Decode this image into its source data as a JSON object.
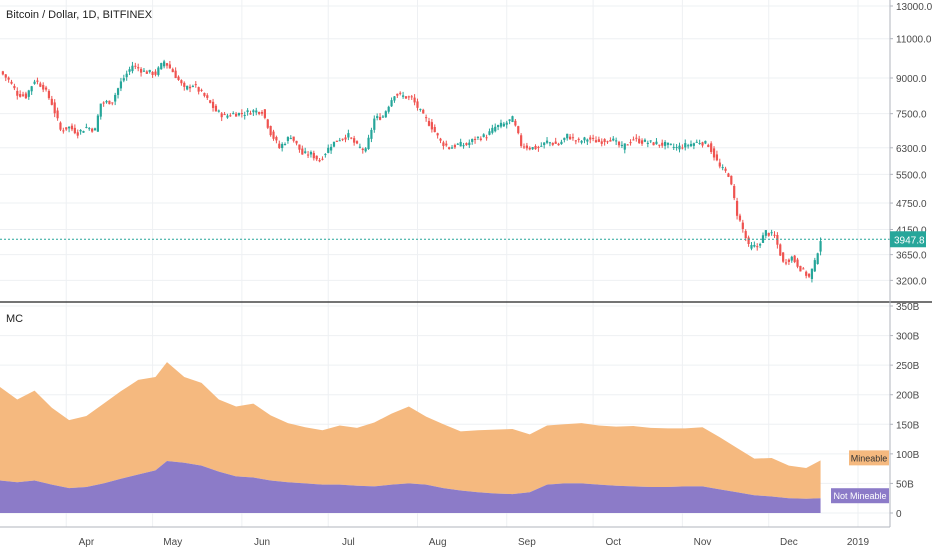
{
  "header": {
    "title": "Bitcoin / Dollar, 1D, BITFINEX",
    "indicator_label": "MC"
  },
  "colors": {
    "up": "#26a69a",
    "down": "#ef5350",
    "mineable": "#f5b97f",
    "not_mineable": "#8c7bc8",
    "last_price": "#26a69a",
    "grid": "#eef0f3",
    "axis_text": "#4a4a4a"
  },
  "chart_data": [
    {
      "type": "candlestick",
      "title": "Bitcoin / Dollar, 1D, BITFINEX",
      "yscale": "log",
      "ylim": [
        3000,
        13000
      ],
      "y_ticks": [
        13000,
        11000,
        9000,
        7500,
        6300,
        5500,
        4750,
        4150,
        3650,
        3200
      ],
      "y_tick_labels": [
        "13000.0",
        "11000.0",
        "9000.0",
        "7500.0",
        "6300.0",
        "5500.0",
        "4750.0",
        "4150.0",
        "3650.0",
        "3200.0"
      ],
      "x_ticks": [
        "Apr",
        "May",
        "Jun",
        "Jul",
        "Aug",
        "Sep",
        "Oct",
        "Nov",
        "Dec",
        "2019"
      ],
      "last_price": 3947.8,
      "last_price_label": "3947.8",
      "close_series": [
        [
          "2018-03-09",
          9300
        ],
        [
          "2018-03-12",
          8900
        ],
        [
          "2018-03-15",
          8300
        ],
        [
          "2018-03-18",
          8200
        ],
        [
          "2018-03-21",
          8900
        ],
        [
          "2018-03-24",
          8600
        ],
        [
          "2018-03-27",
          7900
        ],
        [
          "2018-03-30",
          6900
        ],
        [
          "2018-04-02",
          7000
        ],
        [
          "2018-04-05",
          6800
        ],
        [
          "2018-04-08",
          7000
        ],
        [
          "2018-04-11",
          6900
        ],
        [
          "2018-04-13",
          7900
        ],
        [
          "2018-04-17",
          8000
        ],
        [
          "2018-04-20",
          8800
        ],
        [
          "2018-04-24",
          9600
        ],
        [
          "2018-04-28",
          9300
        ],
        [
          "2018-05-02",
          9200
        ],
        [
          "2018-05-05",
          9800
        ],
        [
          "2018-05-08",
          9300
        ],
        [
          "2018-05-12",
          8500
        ],
        [
          "2018-05-15",
          8700
        ],
        [
          "2018-05-19",
          8200
        ],
        [
          "2018-05-23",
          7600
        ],
        [
          "2018-05-26",
          7400
        ],
        [
          "2018-05-29",
          7500
        ],
        [
          "2018-06-01",
          7500
        ],
        [
          "2018-06-05",
          7600
        ],
        [
          "2018-06-08",
          7600
        ],
        [
          "2018-06-11",
          6800
        ],
        [
          "2018-06-14",
          6300
        ],
        [
          "2018-06-18",
          6700
        ],
        [
          "2018-06-22",
          6100
        ],
        [
          "2018-06-25",
          6100
        ],
        [
          "2018-06-28",
          5900
        ],
        [
          "2018-07-02",
          6400
        ],
        [
          "2018-07-05",
          6600
        ],
        [
          "2018-07-08",
          6700
        ],
        [
          "2018-07-11",
          6350
        ],
        [
          "2018-07-14",
          6200
        ],
        [
          "2018-07-17",
          7300
        ],
        [
          "2018-07-20",
          7400
        ],
        [
          "2018-07-24",
          8300
        ],
        [
          "2018-07-27",
          8200
        ],
        [
          "2018-07-30",
          8100
        ],
        [
          "2018-08-03",
          7400
        ],
        [
          "2018-08-06",
          7000
        ],
        [
          "2018-08-09",
          6500
        ],
        [
          "2018-08-12",
          6300
        ],
        [
          "2018-08-15",
          6400
        ],
        [
          "2018-08-18",
          6400
        ],
        [
          "2018-08-21",
          6600
        ],
        [
          "2018-08-25",
          6700
        ],
        [
          "2018-08-28",
          7000
        ],
        [
          "2018-08-31",
          7100
        ],
        [
          "2018-09-03",
          7300
        ],
        [
          "2018-09-06",
          6400
        ],
        [
          "2018-09-09",
          6300
        ],
        [
          "2018-09-12",
          6300
        ],
        [
          "2018-09-15",
          6500
        ],
        [
          "2018-09-19",
          6400
        ],
        [
          "2018-09-22",
          6700
        ],
        [
          "2018-09-26",
          6500
        ],
        [
          "2018-09-29",
          6600
        ],
        [
          "2018-10-03",
          6500
        ],
        [
          "2018-10-07",
          6600
        ],
        [
          "2018-10-11",
          6300
        ],
        [
          "2018-10-15",
          6600
        ],
        [
          "2018-10-18",
          6500
        ],
        [
          "2018-10-22",
          6450
        ],
        [
          "2018-10-26",
          6400
        ],
        [
          "2018-10-30",
          6300
        ],
        [
          "2018-11-03",
          6400
        ],
        [
          "2018-11-07",
          6500
        ],
        [
          "2018-11-10",
          6400
        ],
        [
          "2018-11-14",
          5700
        ],
        [
          "2018-11-17",
          5500
        ],
        [
          "2018-11-20",
          4500
        ],
        [
          "2018-11-24",
          3800
        ],
        [
          "2018-11-27",
          3800
        ],
        [
          "2018-11-30",
          4100
        ],
        [
          "2018-12-03",
          4000
        ],
        [
          "2018-12-06",
          3500
        ],
        [
          "2018-12-09",
          3600
        ],
        [
          "2018-12-12",
          3400
        ],
        [
          "2018-12-15",
          3250
        ],
        [
          "2018-12-17",
          3500
        ],
        [
          "2018-12-19",
          3947.8
        ]
      ]
    },
    {
      "type": "area",
      "title": "MC",
      "ylim": [
        0,
        350
      ],
      "y_ticks": [
        0,
        50,
        100,
        150,
        200,
        250,
        300,
        350
      ],
      "y_tick_labels": [
        "0",
        "50B",
        "100B",
        "150B",
        "200B",
        "250B",
        "300B",
        "350B"
      ],
      "x_ticks": [
        "Apr",
        "May",
        "Jun",
        "Jul",
        "Aug",
        "Sep",
        "Oct",
        "Nov",
        "Dec",
        "2019"
      ],
      "series": [
        {
          "name": "Mineable",
          "values": [
            [
              "2018-03-09",
              158
            ],
            [
              "2018-03-15",
              140
            ],
            [
              "2018-03-21",
              152
            ],
            [
              "2018-03-27",
              130
            ],
            [
              "2018-04-02",
              115
            ],
            [
              "2018-04-08",
              120
            ],
            [
              "2018-04-14",
              135
            ],
            [
              "2018-04-20",
              148
            ],
            [
              "2018-04-26",
              160
            ],
            [
              "2018-05-02",
              158
            ],
            [
              "2018-05-06",
              167
            ],
            [
              "2018-05-12",
              145
            ],
            [
              "2018-05-18",
              140
            ],
            [
              "2018-05-24",
              122
            ],
            [
              "2018-05-30",
              118
            ],
            [
              "2018-06-05",
              125
            ],
            [
              "2018-06-11",
              110
            ],
            [
              "2018-06-17",
              100
            ],
            [
              "2018-06-23",
              95
            ],
            [
              "2018-06-29",
              92
            ],
            [
              "2018-07-05",
              100
            ],
            [
              "2018-07-11",
              98
            ],
            [
              "2018-07-17",
              108
            ],
            [
              "2018-07-23",
              120
            ],
            [
              "2018-07-29",
              130
            ],
            [
              "2018-08-04",
              115
            ],
            [
              "2018-08-10",
              108
            ],
            [
              "2018-08-16",
              100
            ],
            [
              "2018-08-22",
              105
            ],
            [
              "2018-08-28",
              108
            ],
            [
              "2018-09-03",
              110
            ],
            [
              "2018-09-09",
              98
            ],
            [
              "2018-09-15",
              100
            ],
            [
              "2018-09-21",
              100
            ],
            [
              "2018-09-27",
              102
            ],
            [
              "2018-10-03",
              100
            ],
            [
              "2018-10-09",
              100
            ],
            [
              "2018-10-15",
              102
            ],
            [
              "2018-10-21",
              100
            ],
            [
              "2018-10-27",
              99
            ],
            [
              "2018-11-02",
              98
            ],
            [
              "2018-11-08",
              100
            ],
            [
              "2018-11-14",
              88
            ],
            [
              "2018-11-20",
              75
            ],
            [
              "2018-11-26",
              62
            ],
            [
              "2018-12-02",
              65
            ],
            [
              "2018-12-08",
              55
            ],
            [
              "2018-12-14",
              52
            ],
            [
              "2018-12-19",
              64
            ]
          ]
        },
        {
          "name": "Not Mineable",
          "values": [
            [
              "2018-03-09",
              55
            ],
            [
              "2018-03-15",
              52
            ],
            [
              "2018-03-21",
              55
            ],
            [
              "2018-03-27",
              48
            ],
            [
              "2018-04-02",
              42
            ],
            [
              "2018-04-08",
              44
            ],
            [
              "2018-04-14",
              50
            ],
            [
              "2018-04-20",
              58
            ],
            [
              "2018-04-26",
              65
            ],
            [
              "2018-05-02",
              72
            ],
            [
              "2018-05-06",
              88
            ],
            [
              "2018-05-12",
              85
            ],
            [
              "2018-05-18",
              80
            ],
            [
              "2018-05-24",
              70
            ],
            [
              "2018-05-30",
              62
            ],
            [
              "2018-06-05",
              60
            ],
            [
              "2018-06-11",
              55
            ],
            [
              "2018-06-17",
              52
            ],
            [
              "2018-06-23",
              50
            ],
            [
              "2018-06-29",
              48
            ],
            [
              "2018-07-05",
              48
            ],
            [
              "2018-07-11",
              46
            ],
            [
              "2018-07-17",
              45
            ],
            [
              "2018-07-23",
              48
            ],
            [
              "2018-07-29",
              50
            ],
            [
              "2018-08-04",
              48
            ],
            [
              "2018-08-10",
              42
            ],
            [
              "2018-08-16",
              38
            ],
            [
              "2018-08-22",
              35
            ],
            [
              "2018-08-28",
              33
            ],
            [
              "2018-09-03",
              32
            ],
            [
              "2018-09-09",
              35
            ],
            [
              "2018-09-15",
              48
            ],
            [
              "2018-09-21",
              50
            ],
            [
              "2018-09-27",
              50
            ],
            [
              "2018-10-03",
              48
            ],
            [
              "2018-10-09",
              46
            ],
            [
              "2018-10-15",
              45
            ],
            [
              "2018-10-21",
              44
            ],
            [
              "2018-10-27",
              44
            ],
            [
              "2018-11-02",
              45
            ],
            [
              "2018-11-08",
              45
            ],
            [
              "2018-11-14",
              40
            ],
            [
              "2018-11-20",
              35
            ],
            [
              "2018-11-26",
              30
            ],
            [
              "2018-12-02",
              28
            ],
            [
              "2018-12-08",
              25
            ],
            [
              "2018-12-14",
              24
            ],
            [
              "2018-12-19",
              25
            ]
          ]
        }
      ]
    }
  ]
}
